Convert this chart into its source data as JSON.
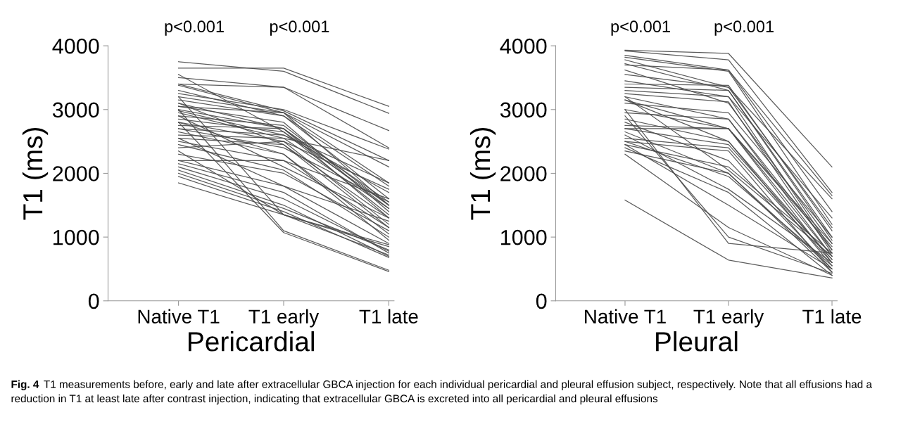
{
  "chart_data": [
    {
      "type": "line",
      "xlabel": "Pericardial",
      "ylabel": "T1 (ms)",
      "categories": [
        "Native T1",
        "T1 early",
        "T1 late"
      ],
      "ylim": [
        0,
        4000
      ],
      "yticks": [
        0,
        1000,
        2000,
        3000,
        4000
      ],
      "grid": false,
      "marker": "none",
      "line_style": "solid",
      "annotations": [
        "p<0.001",
        "p<0.001",
        "Fig. 4",
        "T1 measurements before, early and late after extracellular GBCA injection for each individual pericardial and pleural effusion subject, respectively. Note that all effusions had a reduction in T1 at least late after contrast injection, indicating that extracellular GBCA is excreted into all pericardial and pleural effusions"
      ],
      "series": [
        {
          "color": "#4a4a4a",
          "values": [
            3750,
            3600,
            2940
          ]
        },
        {
          "color": "#4a4a4a",
          "values": [
            3650,
            3650,
            3050
          ]
        },
        {
          "color": "#4a4a4a",
          "values": [
            3550,
            2650,
            1500
          ]
        },
        {
          "color": "#4a4a4a",
          "values": [
            3500,
            3350,
            2670
          ]
        },
        {
          "color": "#4a4a4a",
          "values": [
            3400,
            3350,
            2400
          ]
        },
        {
          "color": "#4a4a4a",
          "values": [
            3400,
            2980,
            2200
          ]
        },
        {
          "color": "#4a4a4a",
          "values": [
            3380,
            2950,
            1850
          ]
        },
        {
          "color": "#4a4a4a",
          "values": [
            3300,
            2900,
            1800
          ]
        },
        {
          "color": "#4a4a4a",
          "values": [
            3250,
            3000,
            2380
          ]
        },
        {
          "color": "#4a4a4a",
          "values": [
            3200,
            2950,
            2100
          ]
        },
        {
          "color": "#4a4a4a",
          "values": [
            3150,
            2900,
            1600
          ]
        },
        {
          "color": "#4a4a4a",
          "values": [
            3100,
            2700,
            1550
          ]
        },
        {
          "color": "#4a4a4a",
          "values": [
            3050,
            2950,
            1500
          ]
        },
        {
          "color": "#4a4a4a",
          "values": [
            3050,
            2800,
            1400
          ]
        },
        {
          "color": "#4a4a4a",
          "values": [
            3000,
            2700,
            1300
          ]
        },
        {
          "color": "#4a4a4a",
          "values": [
            2980,
            2600,
            1700
          ]
        },
        {
          "color": "#4a4a4a",
          "values": [
            2950,
            2550,
            1450
          ]
        },
        {
          "color": "#4a4a4a",
          "values": [
            2900,
            2750,
            1500
          ]
        },
        {
          "color": "#4a4a4a",
          "values": [
            2850,
            2650,
            1350
          ]
        },
        {
          "color": "#4a4a4a",
          "values": [
            2800,
            2500,
            1200
          ]
        },
        {
          "color": "#4a4a4a",
          "values": [
            2800,
            2300,
            1050
          ]
        },
        {
          "color": "#4a4a4a",
          "values": [
            2750,
            2700,
            1450
          ]
        },
        {
          "color": "#4a4a4a",
          "values": [
            2700,
            2600,
            1850
          ]
        },
        {
          "color": "#4a4a4a",
          "values": [
            2700,
            2400,
            1550
          ]
        },
        {
          "color": "#4a4a4a",
          "values": [
            2650,
            2300,
            950
          ]
        },
        {
          "color": "#4a4a4a",
          "values": [
            2600,
            2550,
            2200
          ]
        },
        {
          "color": "#4a4a4a",
          "values": [
            2550,
            2450,
            1300
          ]
        },
        {
          "color": "#4a4a4a",
          "values": [
            2550,
            1800,
            900
          ]
        },
        {
          "color": "#4a4a4a",
          "values": [
            2500,
            2200,
            1150
          ]
        },
        {
          "color": "#4a4a4a",
          "values": [
            2450,
            2050,
            1000
          ]
        },
        {
          "color": "#4a4a4a",
          "values": [
            2400,
            2500,
            1750
          ]
        },
        {
          "color": "#4a4a4a",
          "values": [
            2350,
            1350,
            850
          ]
        },
        {
          "color": "#4a4a4a",
          "values": [
            2300,
            2000,
            1100
          ]
        },
        {
          "color": "#4a4a4a",
          "values": [
            2200,
            2200,
            1600
          ]
        },
        {
          "color": "#4a4a4a",
          "values": [
            2200,
            1800,
            1250
          ]
        },
        {
          "color": "#4a4a4a",
          "values": [
            2150,
            1700,
            750
          ]
        },
        {
          "color": "#4a4a4a",
          "values": [
            2100,
            1600,
            780
          ]
        },
        {
          "color": "#4a4a4a",
          "values": [
            2050,
            1500,
            700
          ]
        },
        {
          "color": "#4a4a4a",
          "values": [
            2000,
            1450,
            800
          ]
        },
        {
          "color": "#4a4a4a",
          "values": [
            1950,
            1400,
            680
          ]
        },
        {
          "color": "#4a4a4a",
          "values": [
            1850,
            1350,
            880
          ]
        },
        {
          "color": "#4a4a4a",
          "values": [
            3000,
            1100,
            480
          ]
        },
        {
          "color": "#4a4a4a",
          "values": [
            2800,
            1070,
            460
          ]
        },
        {
          "color": "#4a4a4a",
          "values": [
            3200,
            1350,
            720
          ]
        },
        {
          "color": "#4a4a4a",
          "values": [
            2900,
            2100,
            1300
          ]
        },
        {
          "color": "#4a4a4a",
          "values": [
            3100,
            2450,
            1150
          ]
        }
      ]
    },
    {
      "type": "line",
      "xlabel": "Pleural",
      "ylabel": "T1 (ms)",
      "categories": [
        "Native T1",
        "T1 early",
        "T1 late"
      ],
      "ylim": [
        0,
        4000
      ],
      "yticks": [
        0,
        1000,
        2000,
        3000,
        4000
      ],
      "grid": false,
      "marker": "none",
      "line_style": "solid",
      "annotations": [
        "p<0.001",
        "p<0.001"
      ],
      "series": [
        {
          "color": "#4a4a4a",
          "values": [
            3930,
            3880,
            2100
          ]
        },
        {
          "color": "#4a4a4a",
          "values": [
            3920,
            3780,
            1700
          ]
        },
        {
          "color": "#4a4a4a",
          "values": [
            3850,
            3620,
            1400
          ]
        },
        {
          "color": "#4a4a4a",
          "values": [
            3820,
            3600,
            1200
          ]
        },
        {
          "color": "#4a4a4a",
          "values": [
            3780,
            3350,
            1150
          ]
        },
        {
          "color": "#4a4a4a",
          "values": [
            3720,
            3300,
            1000
          ]
        },
        {
          "color": "#4a4a4a",
          "values": [
            3700,
            3620,
            1650
          ]
        },
        {
          "color": "#4a4a4a",
          "values": [
            3620,
            3100,
            900
          ]
        },
        {
          "color": "#4a4a4a",
          "values": [
            3550,
            3350,
            1600
          ]
        },
        {
          "color": "#4a4a4a",
          "values": [
            3450,
            3200,
            1300
          ]
        },
        {
          "color": "#4a4a4a",
          "values": [
            3400,
            3380,
            1100
          ]
        },
        {
          "color": "#4a4a4a",
          "values": [
            3350,
            3300,
            950
          ]
        },
        {
          "color": "#4a4a4a",
          "values": [
            3300,
            3200,
            800
          ]
        },
        {
          "color": "#4a4a4a",
          "values": [
            3250,
            3120,
            750
          ]
        },
        {
          "color": "#4a4a4a",
          "values": [
            3200,
            2850,
            700
          ]
        },
        {
          "color": "#4a4a4a",
          "values": [
            3150,
            2500,
            650
          ]
        },
        {
          "color": "#4a4a4a",
          "values": [
            3150,
            2700,
            900
          ]
        },
        {
          "color": "#4a4a4a",
          "values": [
            3100,
            2950,
            1000
          ]
        },
        {
          "color": "#4a4a4a",
          "values": [
            3000,
            2700,
            600
          ]
        },
        {
          "color": "#4a4a4a",
          "values": [
            2950,
            2850,
            800
          ]
        },
        {
          "color": "#4a4a4a",
          "values": [
            2850,
            2500,
            550
          ]
        },
        {
          "color": "#4a4a4a",
          "values": [
            2800,
            2200,
            500
          ]
        },
        {
          "color": "#4a4a4a",
          "values": [
            2750,
            2700,
            850
          ]
        },
        {
          "color": "#4a4a4a",
          "values": [
            2700,
            2700,
            700
          ]
        },
        {
          "color": "#4a4a4a",
          "values": [
            2700,
            2450,
            650
          ]
        },
        {
          "color": "#4a4a4a",
          "values": [
            2650,
            2000,
            500
          ]
        },
        {
          "color": "#4a4a4a",
          "values": [
            2550,
            2400,
            600
          ]
        },
        {
          "color": "#4a4a4a",
          "values": [
            2500,
            2350,
            450
          ]
        },
        {
          "color": "#4a4a4a",
          "values": [
            2500,
            1950,
            550
          ]
        },
        {
          "color": "#4a4a4a",
          "values": [
            2450,
            2100,
            750
          ]
        },
        {
          "color": "#4a4a4a",
          "values": [
            2400,
            1700,
            400
          ]
        },
        {
          "color": "#4a4a4a",
          "values": [
            2350,
            2000,
            450
          ]
        },
        {
          "color": "#4a4a4a",
          "values": [
            2300,
            1150,
            400
          ]
        },
        {
          "color": "#4a4a4a",
          "values": [
            2900,
            1000,
            430
          ]
        },
        {
          "color": "#4a4a4a",
          "values": [
            3000,
            900,
            750
          ]
        },
        {
          "color": "#4a4a4a",
          "values": [
            1580,
            640,
            360
          ]
        },
        {
          "color": "#4a4a4a",
          "values": [
            2600,
            1750,
            600
          ]
        },
        {
          "color": "#4a4a4a",
          "values": [
            3200,
            2050,
            700
          ]
        },
        {
          "color": "#4a4a4a",
          "values": [
            2450,
            1500,
            500
          ]
        }
      ]
    }
  ]
}
